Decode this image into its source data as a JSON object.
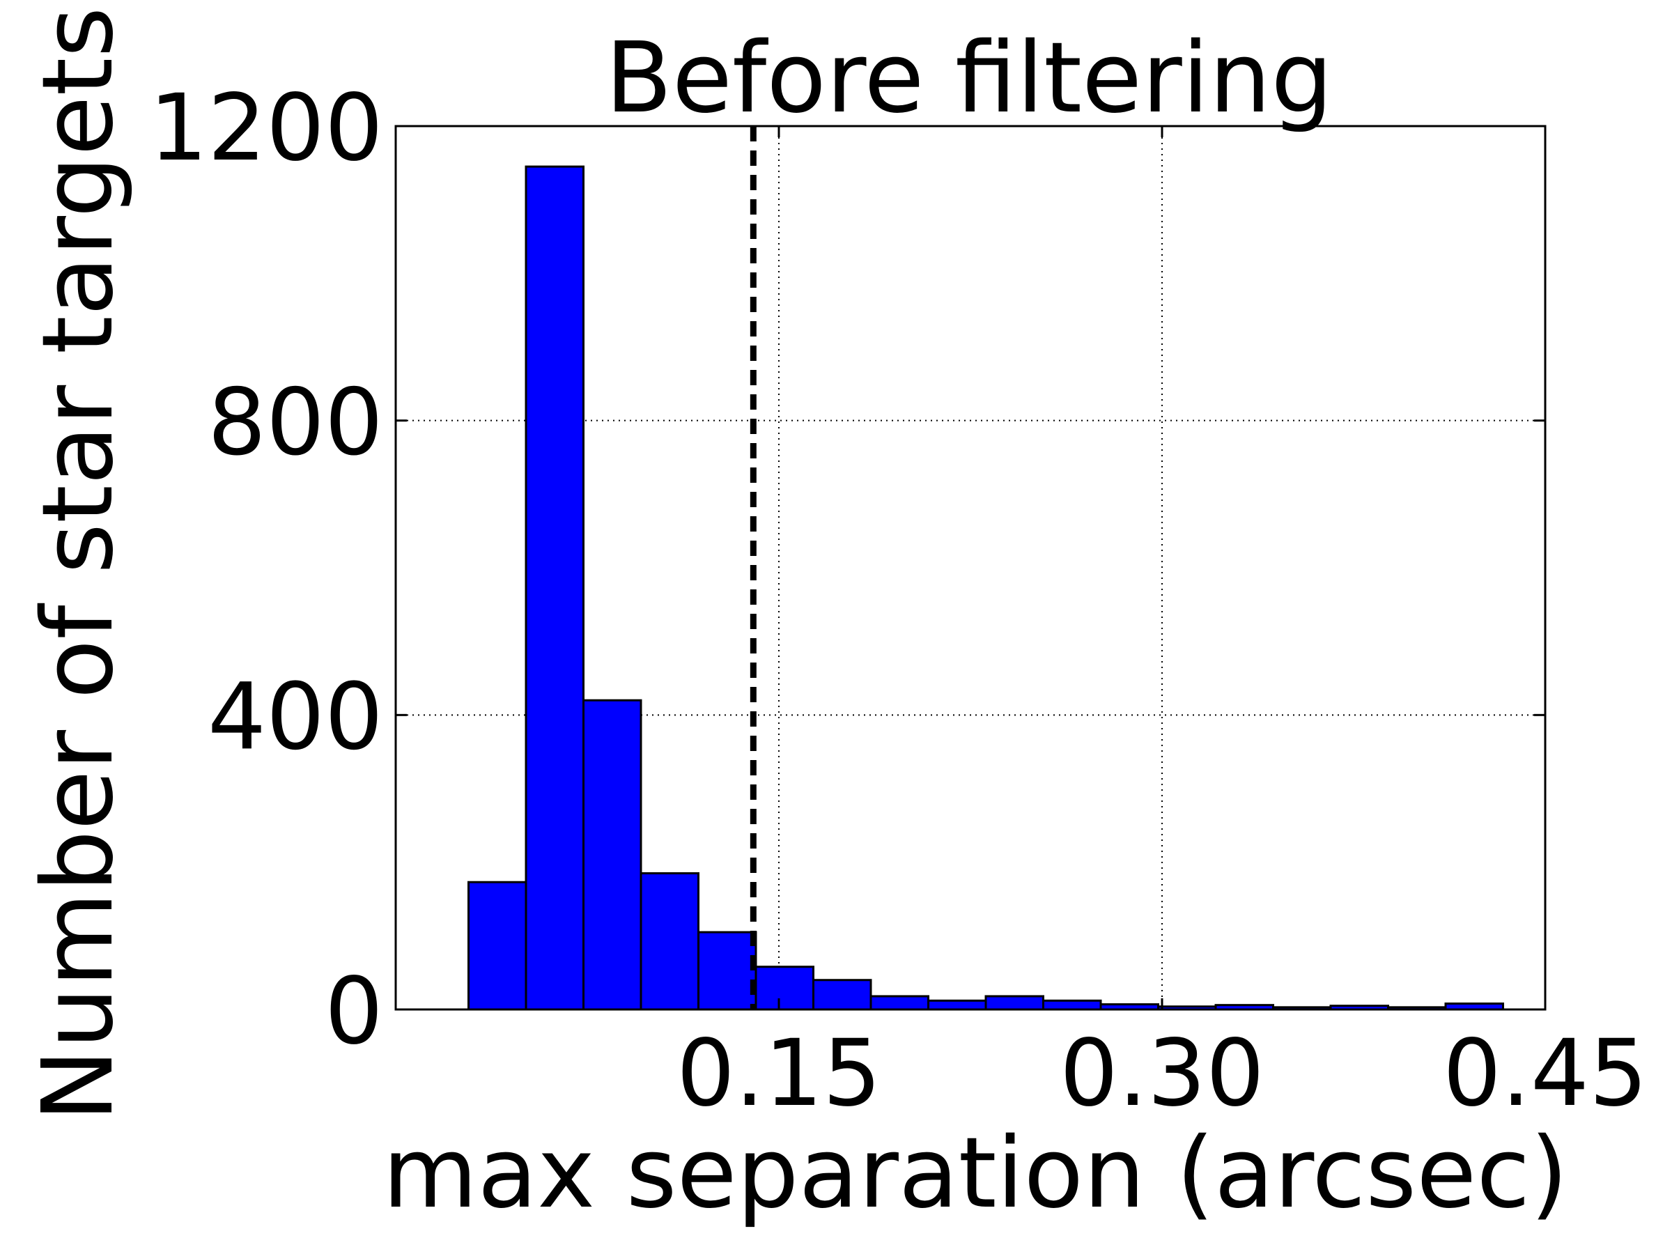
{
  "chart_data": {
    "type": "bar",
    "title": "Before filtering",
    "xlabel": "max separation (arcsec)",
    "ylabel": "Number of star targets",
    "xlim": [
      0,
      0.45
    ],
    "ylim": [
      0,
      1200
    ],
    "xticks": [
      0.15,
      0.3,
      0.45
    ],
    "xtick_labels": [
      "0.15",
      "0.30",
      "0.45"
    ],
    "yticks": [
      0,
      400,
      800,
      1200
    ],
    "ytick_labels": [
      "0",
      "400",
      "800",
      "1200"
    ],
    "grid": true,
    "bin_edges": [
      0.0285,
      0.051,
      0.0735,
      0.096,
      0.1185,
      0.141,
      0.1635,
      0.186,
      0.2085,
      0.231,
      0.2535,
      0.276,
      0.2985,
      0.321,
      0.3435,
      0.366,
      0.3885,
      0.411,
      0.4335
    ],
    "values": [
      173,
      1145,
      420,
      185,
      105,
      58,
      40,
      18,
      12,
      18,
      12,
      7,
      4,
      6,
      3,
      5,
      3,
      8
    ],
    "threshold_x": 0.14,
    "bar_color": "#0000ff",
    "edge_color": "#000000"
  }
}
